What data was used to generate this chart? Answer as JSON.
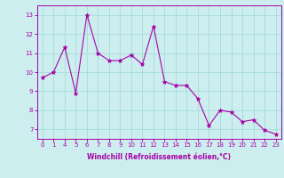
{
  "x_labels": [
    0,
    1,
    4,
    5,
    6,
    7,
    8,
    9,
    10,
    11,
    12,
    13,
    14,
    15,
    16,
    17,
    18,
    19,
    20,
    21,
    22,
    23
  ],
  "y": [
    9.7,
    10.0,
    11.3,
    8.9,
    13.0,
    11.0,
    10.6,
    10.6,
    10.9,
    10.4,
    12.4,
    9.5,
    9.3,
    9.3,
    8.6,
    7.2,
    8.0,
    7.9,
    7.4,
    7.5,
    6.95,
    6.75
  ],
  "line_color": "#aa00aa",
  "marker_color": "#aa00aa",
  "bg_color": "#cceeee",
  "grid_color": "#aadddd",
  "xlabel": "Windchill (Refroidissement éolien,°C)",
  "xlim": [
    -0.5,
    21.5
  ],
  "ylim": [
    6.5,
    13.5
  ],
  "yticks": [
    7,
    8,
    9,
    10,
    11,
    12,
    13
  ],
  "fontsize_ticks": 5,
  "fontsize_xlabel": 5.5
}
